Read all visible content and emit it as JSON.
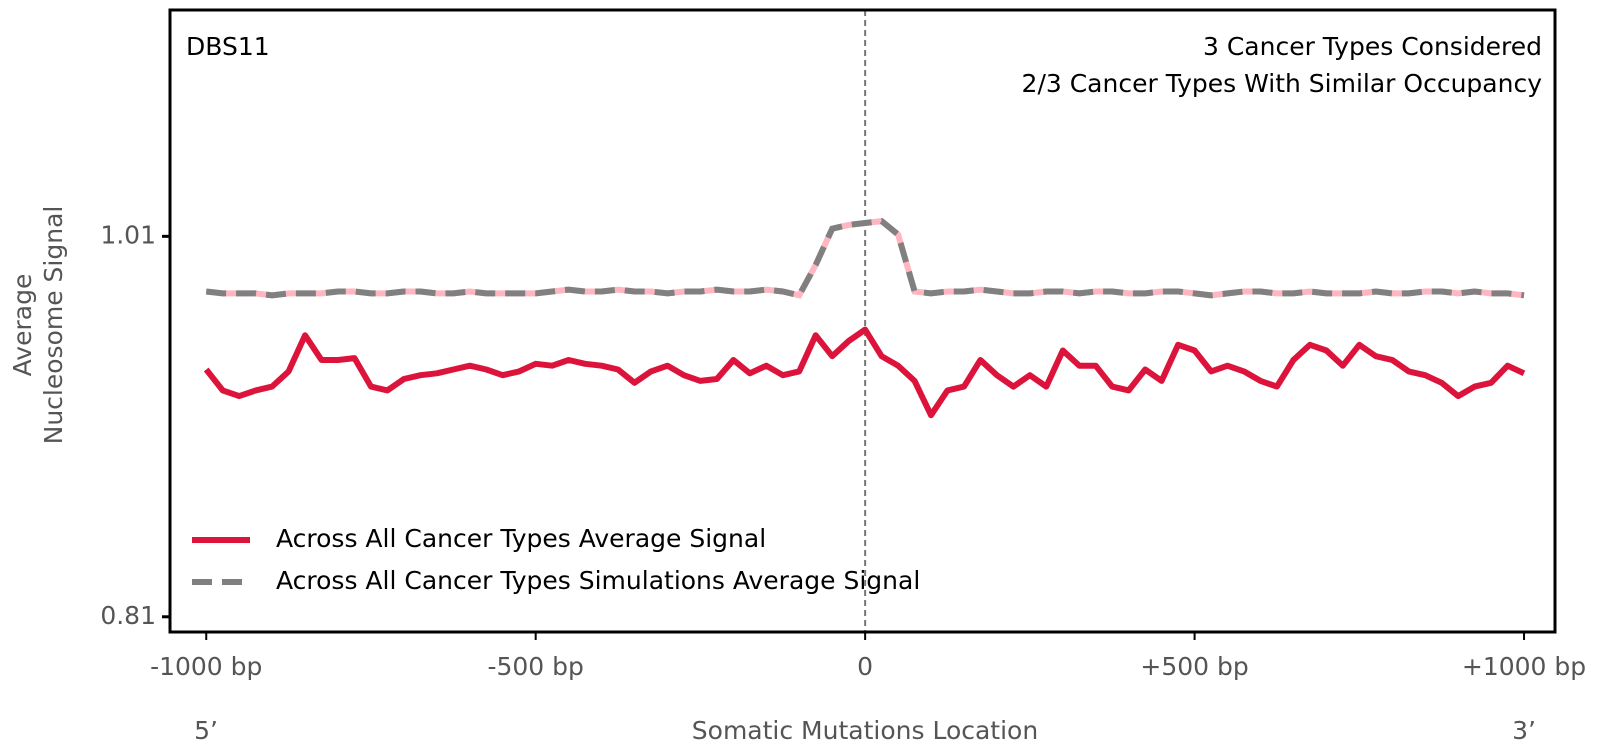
{
  "chart_data": {
    "type": "line",
    "title": "DBS11",
    "annotations": [
      "3 Cancer Types Considered",
      "2/3 Cancer Types With Similar Occupancy"
    ],
    "y_label_lines": [
      "Average",
      "Nucleosome Signal"
    ],
    "x_label": "Somatic Mutations Location",
    "x_end_labels": [
      "5’",
      "3’"
    ],
    "xlim": [
      -1055,
      1047
    ],
    "ylim": [
      0.802,
      1.129
    ],
    "xticks": [
      {
        "value": -1000,
        "label": "-1000 bp"
      },
      {
        "value": -500,
        "label": "-500 bp"
      },
      0,
      {
        "value": 500,
        "label": "+500 bp"
      },
      {
        "value": 1000,
        "label": "+1000 bp"
      }
    ],
    "yticks": [
      0.81,
      1.01
    ],
    "vline": 0,
    "legend": "lower left",
    "x": [
      -1000,
      -975,
      -950,
      -925,
      -900,
      -875,
      -850,
      -825,
      -800,
      -775,
      -750,
      -725,
      -700,
      -675,
      -650,
      -625,
      -600,
      -575,
      -550,
      -525,
      -500,
      -475,
      -450,
      -425,
      -400,
      -375,
      -350,
      -325,
      -300,
      -275,
      -250,
      -225,
      -200,
      -175,
      -150,
      -125,
      -100,
      -75,
      -50,
      -25,
      0,
      25,
      50,
      75,
      100,
      125,
      150,
      175,
      200,
      225,
      250,
      275,
      300,
      325,
      350,
      375,
      400,
      425,
      450,
      475,
      500,
      525,
      550,
      575,
      600,
      625,
      650,
      675,
      700,
      725,
      750,
      775,
      800,
      825,
      850,
      875,
      900,
      925,
      950,
      975,
      1000
    ],
    "series": [
      {
        "name": "Across All Cancer Types Average Signal",
        "color": "#dc143c",
        "dashed": false,
        "values": [
          0.94,
          0.929,
          0.926,
          0.929,
          0.931,
          0.939,
          0.958,
          0.945,
          0.945,
          0.946,
          0.931,
          0.929,
          0.935,
          0.937,
          0.938,
          0.94,
          0.942,
          0.94,
          0.937,
          0.939,
          0.943,
          0.942,
          0.945,
          0.943,
          0.942,
          0.94,
          0.933,
          0.939,
          0.942,
          0.937,
          0.934,
          0.935,
          0.945,
          0.938,
          0.942,
          0.937,
          0.939,
          0.958,
          0.947,
          0.955,
          0.961,
          0.947,
          0.942,
          0.934,
          0.916,
          0.929,
          0.931,
          0.945,
          0.937,
          0.931,
          0.937,
          0.931,
          0.95,
          0.942,
          0.942,
          0.931,
          0.929,
          0.94,
          0.934,
          0.953,
          0.95,
          0.939,
          0.942,
          0.939,
          0.934,
          0.931,
          0.945,
          0.953,
          0.95,
          0.942,
          0.953,
          0.947,
          0.945,
          0.939,
          0.937,
          0.933,
          0.926,
          0.931,
          0.933,
          0.942,
          0.938
        ]
      },
      {
        "name": "Across All Cancer Types Simulations Average Signal",
        "color": "#808080",
        "dashed": true,
        "gap_color": "#ffb6c1",
        "values": [
          0.981,
          0.98,
          0.98,
          0.98,
          0.979,
          0.98,
          0.98,
          0.98,
          0.981,
          0.981,
          0.98,
          0.98,
          0.981,
          0.981,
          0.98,
          0.98,
          0.981,
          0.98,
          0.98,
          0.98,
          0.98,
          0.981,
          0.982,
          0.981,
          0.981,
          0.982,
          0.981,
          0.981,
          0.98,
          0.981,
          0.981,
          0.982,
          0.981,
          0.981,
          0.982,
          0.981,
          0.979,
          0.995,
          1.014,
          1.016,
          1.017,
          1.018,
          1.011,
          0.981,
          0.98,
          0.981,
          0.981,
          0.982,
          0.981,
          0.98,
          0.98,
          0.981,
          0.981,
          0.98,
          0.981,
          0.981,
          0.98,
          0.98,
          0.981,
          0.981,
          0.98,
          0.979,
          0.98,
          0.981,
          0.981,
          0.98,
          0.98,
          0.981,
          0.98,
          0.98,
          0.98,
          0.981,
          0.98,
          0.98,
          0.981,
          0.981,
          0.98,
          0.981,
          0.98,
          0.98,
          0.979
        ]
      }
    ]
  }
}
